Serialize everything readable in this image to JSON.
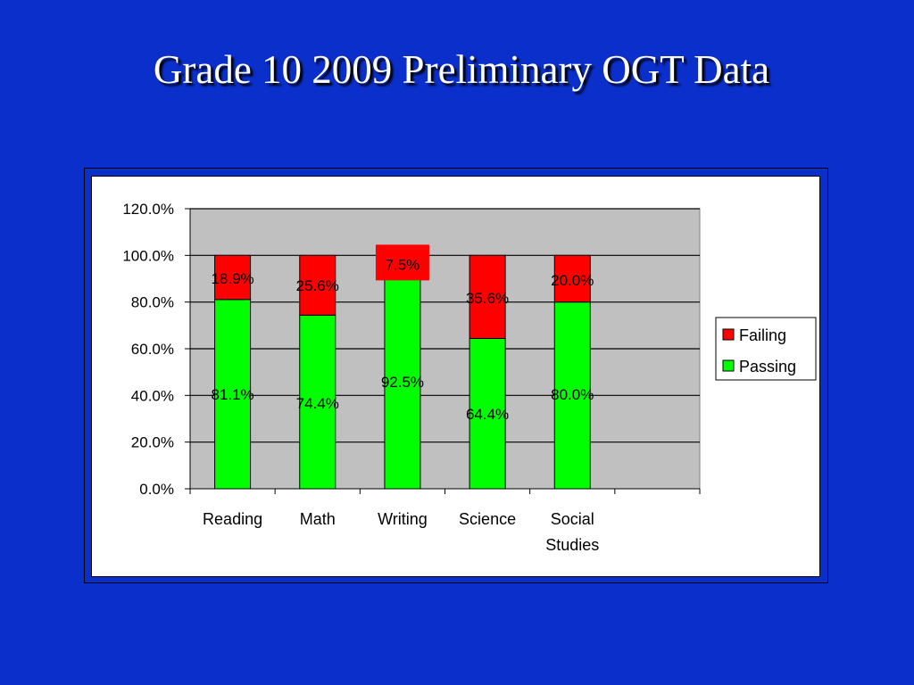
{
  "slide": {
    "title": "Grade 10 2009 Preliminary OGT Data"
  },
  "colors": {
    "background": "#0b2fcb",
    "failing": "#ff0000",
    "passing": "#00ff00",
    "plot_area": "#c0c0c0"
  },
  "chart_data": {
    "type": "bar",
    "stacked": true,
    "categories": [
      "Reading",
      "Math",
      "Writing",
      "Science",
      "Social Studies"
    ],
    "series": [
      {
        "name": "Passing",
        "values": [
          81.1,
          74.4,
          92.5,
          64.4,
          80.0
        ],
        "labels": [
          "81.1%",
          "74.4%",
          "92.5%",
          "64.4%",
          "80.0%"
        ],
        "color": "#00ff00"
      },
      {
        "name": "Failing",
        "values": [
          18.9,
          25.6,
          7.5,
          35.6,
          20.0
        ],
        "labels": [
          "18.9%",
          "25.6%",
          "7.5%",
          "35.6%",
          "20.0%"
        ],
        "color": "#ff0000"
      }
    ],
    "ylim": [
      0,
      120
    ],
    "yticks": [
      "0.0%",
      "20.0%",
      "40.0%",
      "60.0%",
      "80.0%",
      "100.0%",
      "120.0%"
    ],
    "legend": [
      "Failing",
      "Passing"
    ],
    "legend_position": "right",
    "grid": true
  }
}
